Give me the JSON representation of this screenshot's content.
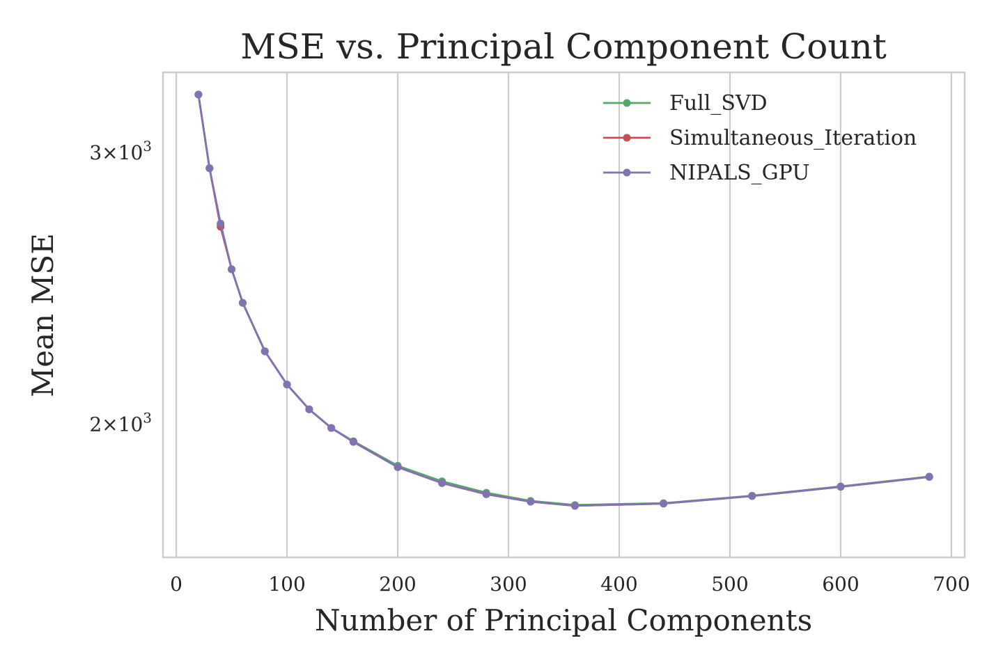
{
  "chart_data": {
    "type": "line",
    "title": "MSE vs. Principal Component Count",
    "xlabel": "Number of Principal Components",
    "ylabel": "Mean MSE",
    "xlim": [
      -12,
      712
    ],
    "ylim": [
      1640,
      3380
    ],
    "yscale": "log",
    "grid": "vertical",
    "legend_position": "top-right",
    "x_ticks": [
      0,
      100,
      200,
      300,
      400,
      500,
      600,
      700
    ],
    "x_tick_labels": [
      "0",
      "100",
      "200",
      "300",
      "400",
      "500",
      "600",
      "700"
    ],
    "y_ticks": [
      {
        "value": 3000,
        "base": "3",
        "exp": "3"
      },
      {
        "value": 2000,
        "base": "2",
        "exp": "3"
      }
    ],
    "x": [
      20,
      30,
      40,
      50,
      60,
      80,
      100,
      120,
      140,
      160,
      200,
      240,
      280,
      320,
      360,
      440,
      520,
      600,
      680
    ],
    "series": [
      {
        "name": "Full_SVD",
        "color": "#55a868",
        "values": [
          3270,
          2930,
          2692,
          2520,
          2397,
          2230,
          2122,
          2045,
          1989,
          1950,
          1880,
          1837,
          1806,
          1784,
          1773,
          1778,
          1798,
          1823,
          1850
        ]
      },
      {
        "name": "Simultaneous_Iteration",
        "color": "#c44e52",
        "values": [
          3270,
          2930,
          2685,
          2520,
          2397,
          2230,
          2122,
          2045,
          1989,
          1948,
          1876,
          1832,
          1802,
          1782,
          1771,
          1777,
          1797,
          1822,
          1849
        ]
      },
      {
        "name": "NIPALS_GPU",
        "color": "#8172b2",
        "values": [
          3270,
          2930,
          2698,
          2520,
          2397,
          2230,
          2122,
          2045,
          1989,
          1948,
          1876,
          1832,
          1802,
          1782,
          1771,
          1777,
          1797,
          1822,
          1849
        ]
      }
    ]
  }
}
